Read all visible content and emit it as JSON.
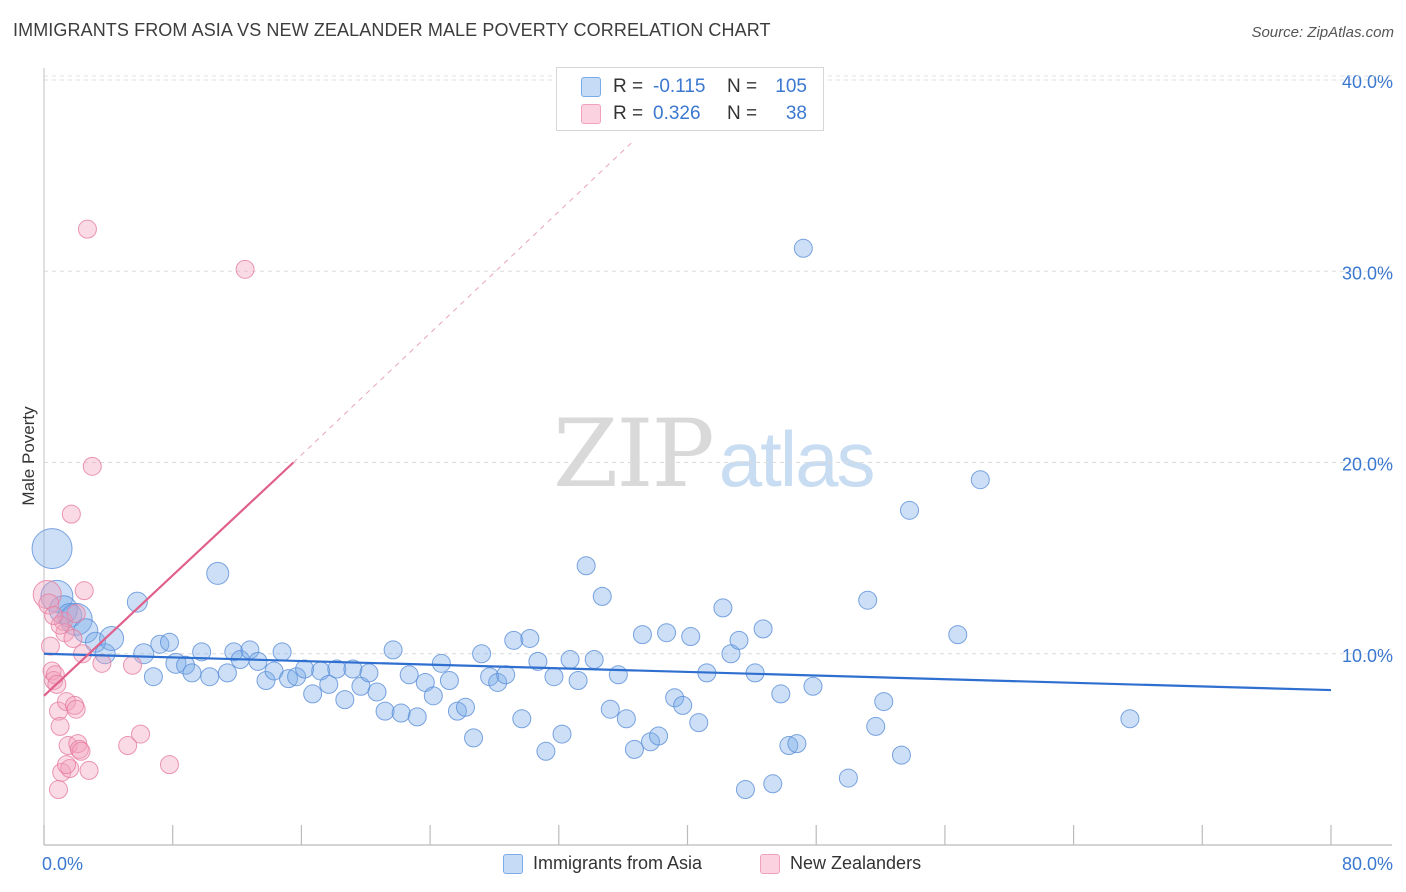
{
  "title": "IMMIGRANTS FROM ASIA VS NEW ZEALANDER MALE POVERTY CORRELATION CHART",
  "source": "Source: ZipAtlas.com",
  "watermark": {
    "zip": "ZIP",
    "atlas": "atlas"
  },
  "legend_top": {
    "rows": [
      {
        "r_label": "R =",
        "r_value": "-0.115",
        "n_label": "N =",
        "n_value": "105",
        "color": "#7aaae8"
      },
      {
        "r_label": "R =",
        "r_value": "0.326",
        "n_label": "N =",
        "n_value": "38",
        "color": "#f2a0bb"
      }
    ]
  },
  "chart_data": {
    "type": "scatter",
    "title": "IMMIGRANTS FROM ASIA VS NEW ZEALANDER MALE POVERTY CORRELATION CHART",
    "xlabel": "",
    "ylabel": "Male Poverty",
    "xlim": [
      0,
      80
    ],
    "ylim": [
      0,
      40
    ],
    "x_tick_labels": {
      "min": "0.0%",
      "max": "80.0%"
    },
    "y_ticks": [
      10,
      20,
      30,
      40
    ],
    "y_tick_labels": [
      "10.0%",
      "20.0%",
      "30.0%",
      "40.0%"
    ],
    "grid": true,
    "legend_position": "bottom",
    "series": [
      {
        "name": "Immigrants from Asia",
        "color": "#7aaae8",
        "stroke": "#5b8fd8",
        "trend_color": "#2f6fd0",
        "trend": {
          "x0": 0.0,
          "y0": 10.0,
          "x1": 80.0,
          "y1": 8.1,
          "dashed_from": null
        },
        "points": [
          [
            0.5,
            15.5,
            20
          ],
          [
            0.8,
            13.0,
            16
          ],
          [
            1.2,
            12.3,
            14
          ],
          [
            1.6,
            12.0,
            12
          ],
          [
            2.0,
            11.8,
            16
          ],
          [
            2.6,
            11.2,
            12
          ],
          [
            3.2,
            10.6,
            10
          ],
          [
            3.8,
            10.0,
            10
          ],
          [
            4.2,
            10.8,
            12
          ],
          [
            5.8,
            12.7,
            10
          ],
          [
            6.2,
            10.0,
            10
          ],
          [
            6.8,
            8.8,
            9
          ],
          [
            7.2,
            10.5,
            9
          ],
          [
            7.8,
            10.6,
            9
          ],
          [
            8.2,
            9.5,
            10
          ],
          [
            8.8,
            9.4,
            9
          ],
          [
            9.2,
            9.0,
            9
          ],
          [
            9.8,
            10.1,
            9
          ],
          [
            10.3,
            8.8,
            9
          ],
          [
            10.8,
            14.2,
            11
          ],
          [
            11.4,
            9.0,
            9
          ],
          [
            11.8,
            10.1,
            9
          ],
          [
            12.2,
            9.7,
            9
          ],
          [
            12.8,
            10.2,
            9
          ],
          [
            13.3,
            9.6,
            9
          ],
          [
            13.8,
            8.6,
            9
          ],
          [
            14.3,
            9.1,
            9
          ],
          [
            14.8,
            10.1,
            9
          ],
          [
            15.2,
            8.7,
            9
          ],
          [
            15.7,
            8.8,
            9
          ],
          [
            16.2,
            9.2,
            9
          ],
          [
            16.7,
            7.9,
            9
          ],
          [
            17.2,
            9.1,
            9
          ],
          [
            17.7,
            8.4,
            9
          ],
          [
            18.2,
            9.2,
            9
          ],
          [
            18.7,
            7.6,
            9
          ],
          [
            19.2,
            9.2,
            9
          ],
          [
            19.7,
            8.3,
            9
          ],
          [
            20.2,
            9.0,
            9
          ],
          [
            20.7,
            8.0,
            9
          ],
          [
            21.2,
            7.0,
            9
          ],
          [
            21.7,
            10.2,
            9
          ],
          [
            22.2,
            6.9,
            9
          ],
          [
            22.7,
            8.9,
            9
          ],
          [
            23.2,
            6.7,
            9
          ],
          [
            23.7,
            8.5,
            9
          ],
          [
            24.2,
            7.8,
            9
          ],
          [
            24.7,
            9.5,
            9
          ],
          [
            25.2,
            8.6,
            9
          ],
          [
            25.7,
            7.0,
            9
          ],
          [
            26.2,
            7.2,
            9
          ],
          [
            26.7,
            5.6,
            9
          ],
          [
            27.2,
            10.0,
            9
          ],
          [
            27.7,
            8.8,
            9
          ],
          [
            28.2,
            8.5,
            9
          ],
          [
            28.7,
            8.9,
            9
          ],
          [
            29.2,
            10.7,
            9
          ],
          [
            29.7,
            6.6,
            9
          ],
          [
            30.2,
            10.8,
            9
          ],
          [
            30.7,
            9.6,
            9
          ],
          [
            31.2,
            4.9,
            9
          ],
          [
            31.7,
            8.8,
            9
          ],
          [
            32.2,
            5.8,
            9
          ],
          [
            32.7,
            9.7,
            9
          ],
          [
            33.2,
            8.6,
            9
          ],
          [
            33.7,
            14.6,
            9
          ],
          [
            34.2,
            9.7,
            9
          ],
          [
            34.7,
            13.0,
            9
          ],
          [
            35.2,
            7.1,
            9
          ],
          [
            35.7,
            8.9,
            9
          ],
          [
            36.2,
            6.6,
            9
          ],
          [
            36.7,
            5.0,
            9
          ],
          [
            37.2,
            11.0,
            9
          ],
          [
            37.7,
            5.4,
            9
          ],
          [
            38.2,
            5.7,
            9
          ],
          [
            38.7,
            11.1,
            9
          ],
          [
            39.2,
            7.7,
            9
          ],
          [
            39.7,
            7.3,
            9
          ],
          [
            40.2,
            10.9,
            9
          ],
          [
            40.7,
            6.4,
            9
          ],
          [
            41.2,
            9.0,
            9
          ],
          [
            42.2,
            12.4,
            9
          ],
          [
            42.7,
            10.0,
            9
          ],
          [
            43.2,
            10.7,
            9
          ],
          [
            43.6,
            2.9,
            9
          ],
          [
            44.2,
            9.0,
            9
          ],
          [
            44.7,
            11.3,
            9
          ],
          [
            45.3,
            3.2,
            9
          ],
          [
            45.8,
            7.9,
            9
          ],
          [
            46.3,
            5.2,
            9
          ],
          [
            46.8,
            5.3,
            9
          ],
          [
            47.2,
            31.2,
            9
          ],
          [
            47.8,
            8.3,
            9
          ],
          [
            50.0,
            3.5,
            9
          ],
          [
            51.2,
            12.8,
            9
          ],
          [
            51.7,
            6.2,
            9
          ],
          [
            52.2,
            7.5,
            9
          ],
          [
            53.3,
            4.7,
            9
          ],
          [
            53.8,
            17.5,
            9
          ],
          [
            56.8,
            11.0,
            9
          ],
          [
            58.2,
            19.1,
            9
          ],
          [
            67.5,
            6.6,
            9
          ]
        ]
      },
      {
        "name": "New Zealanders",
        "color": "#f2a0bb",
        "stroke": "#e67da0",
        "trend_color": "#e0608c",
        "trend": {
          "x0": 0.0,
          "y0": 7.8,
          "x1": 15.5,
          "y1": 20.0,
          "dashed_to": {
            "x": 36.5,
            "y": 36.7
          }
        },
        "points": [
          [
            0.2,
            13.1,
            14
          ],
          [
            0.3,
            12.6,
            10
          ],
          [
            0.4,
            10.4,
            9
          ],
          [
            0.5,
            9.1,
            9
          ],
          [
            0.6,
            8.6,
            9
          ],
          [
            0.7,
            8.9,
            9
          ],
          [
            0.8,
            8.4,
            9
          ],
          [
            0.9,
            7.0,
            9
          ],
          [
            1.0,
            6.2,
            9
          ],
          [
            1.1,
            3.8,
            9
          ],
          [
            1.2,
            11.7,
            9
          ],
          [
            1.3,
            11.1,
            9
          ],
          [
            1.4,
            7.5,
            9
          ],
          [
            1.5,
            5.2,
            9
          ],
          [
            1.6,
            4.0,
            9
          ],
          [
            1.7,
            17.3,
            9
          ],
          [
            1.8,
            10.8,
            9
          ],
          [
            1.9,
            7.3,
            9
          ],
          [
            2.0,
            7.1,
            9
          ],
          [
            2.1,
            5.3,
            9
          ],
          [
            2.2,
            5.0,
            9
          ],
          [
            2.3,
            4.9,
            9
          ],
          [
            2.4,
            10.0,
            9
          ],
          [
            2.5,
            13.3,
            9
          ],
          [
            2.7,
            32.2,
            9
          ],
          [
            2.8,
            3.9,
            9
          ],
          [
            3.0,
            19.8,
            9
          ],
          [
            3.6,
            9.5,
            9
          ],
          [
            5.2,
            5.2,
            9
          ],
          [
            5.5,
            9.4,
            9
          ],
          [
            6.0,
            5.8,
            9
          ],
          [
            7.8,
            4.2,
            9
          ],
          [
            12.5,
            30.1,
            9
          ],
          [
            0.9,
            2.9,
            9
          ],
          [
            1.0,
            11.5,
            9
          ],
          [
            2.0,
            12.1,
            9
          ],
          [
            1.4,
            4.2,
            9
          ],
          [
            0.6,
            12.0,
            9
          ]
        ]
      }
    ]
  },
  "legend_bottom": [
    {
      "label": "Immigrants from Asia",
      "color": "#7aaae8"
    },
    {
      "label": "New Zealanders",
      "color": "#f2a0bb"
    }
  ]
}
